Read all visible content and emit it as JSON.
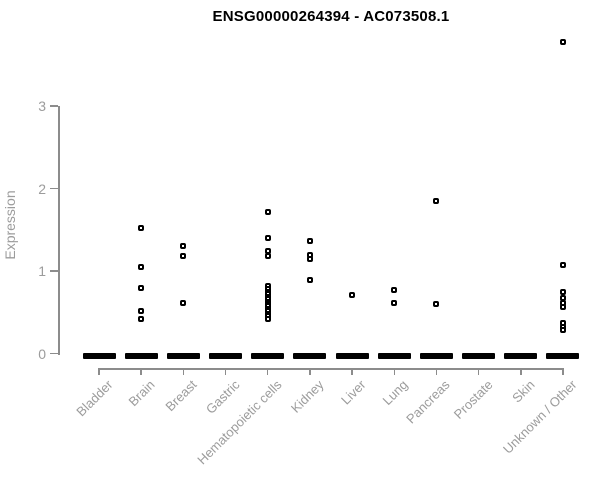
{
  "chart_data": {
    "type": "scatter",
    "subtype": "strip-plot-by-category",
    "title": "ENSG00000264394 - AC073508.1",
    "ylabel": "Expression",
    "xlabel": "",
    "ylim": [
      0,
      3
    ],
    "yticks": [
      0,
      1,
      2,
      3
    ],
    "grid": false,
    "legend": false,
    "marker": "small-open-square",
    "categories": [
      "Bladder",
      "Brain",
      "Breast",
      "Gastric",
      "Hematopoietic cells",
      "Kidney",
      "Liver",
      "Lung",
      "Pancreas",
      "Prostate",
      "Skin",
      "Unknown / Other"
    ],
    "series": [
      {
        "category": "Bladder",
        "zero_cluster": true,
        "points": []
      },
      {
        "category": "Brain",
        "zero_cluster": true,
        "points": [
          1.52,
          1.05,
          0.79,
          0.52,
          0.42
        ]
      },
      {
        "category": "Breast",
        "zero_cluster": true,
        "points": [
          1.3,
          1.18,
          0.61
        ]
      },
      {
        "category": "Gastric",
        "zero_cluster": true,
        "points": []
      },
      {
        "category": "Hematopoietic cells",
        "zero_cluster": true,
        "points": [
          1.71,
          1.4,
          1.24,
          1.18,
          0.82,
          0.78,
          0.75,
          0.72,
          0.69,
          0.66,
          0.63,
          0.6,
          0.57,
          0.54,
          0.51,
          0.48,
          0.45,
          0.42
        ]
      },
      {
        "category": "Kidney",
        "zero_cluster": true,
        "points": [
          1.36,
          1.2,
          1.14,
          0.89
        ]
      },
      {
        "category": "Liver",
        "zero_cluster": true,
        "points": [
          0.71
        ]
      },
      {
        "category": "Lung",
        "zero_cluster": true,
        "points": [
          0.77,
          0.61
        ]
      },
      {
        "category": "Pancreas",
        "zero_cluster": true,
        "points": [
          1.85,
          0.6
        ]
      },
      {
        "category": "Prostate",
        "zero_cluster": true,
        "points": []
      },
      {
        "category": "Skin",
        "zero_cluster": true,
        "points": []
      },
      {
        "category": "Unknown / Other",
        "zero_cluster": true,
        "points": [
          3.77,
          1.07,
          0.74,
          0.67,
          0.61,
          0.56,
          0.37,
          0.32,
          0.28
        ]
      }
    ],
    "colors": {
      "points": "#000000",
      "axis": "#8c8c8c",
      "labels": "#9c9c9c",
      "title": "#000000",
      "background": "#ffffff"
    }
  }
}
